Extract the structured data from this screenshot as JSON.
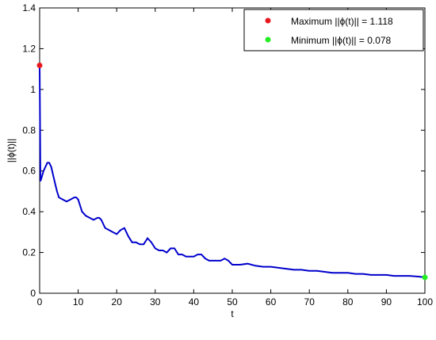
{
  "chart_data": {
    "type": "line",
    "title": "",
    "xlabel": "t",
    "ylabel": "||ϕ(t)||",
    "xlim": [
      0,
      100
    ],
    "ylim": [
      0,
      1.4
    ],
    "x_ticks": [
      "0",
      "10",
      "20",
      "30",
      "40",
      "50",
      "60",
      "70",
      "80",
      "90",
      "100"
    ],
    "y_ticks": [
      "0",
      "0.2",
      "0.4",
      "0.6",
      "0.8",
      "1",
      "1.2",
      "1.4"
    ],
    "grid": false,
    "legend_position": "top-right",
    "series": [
      {
        "color": "#0000cc",
        "x": [
          0,
          0.2,
          0.4,
          0.7,
          1.0,
          1.5,
          2.0,
          2.5,
          3.0,
          3.5,
          4.0,
          4.5,
          5.0,
          6.0,
          7.0,
          8.0,
          9.0,
          9.5,
          10.0,
          11.0,
          12.0,
          13.0,
          14.0,
          15.0,
          15.5,
          16.0,
          17.0,
          18.0,
          19.0,
          20.0,
          21.0,
          22.0,
          23.0,
          24.0,
          25.0,
          26.0,
          27.0,
          28.0,
          29.0,
          30.0,
          31.0,
          32.0,
          33.0,
          34.0,
          35.0,
          36.0,
          37.0,
          38.0,
          39.0,
          40.0,
          41.0,
          42.0,
          43.0,
          44.0,
          45.0,
          46.0,
          47.0,
          48.0,
          49.0,
          50.0,
          52.0,
          54.0,
          56.0,
          58.0,
          60.0,
          62.0,
          64.0,
          66.0,
          68.0,
          70.0,
          72.0,
          74.0,
          76.0,
          78.0,
          80.0,
          82.0,
          84.0,
          86.0,
          88.0,
          90.0,
          92.0,
          94.0,
          96.0,
          98.0,
          100.0
        ],
        "y": [
          1.118,
          0.55,
          0.56,
          0.58,
          0.6,
          0.62,
          0.64,
          0.64,
          0.62,
          0.58,
          0.54,
          0.5,
          0.47,
          0.46,
          0.45,
          0.46,
          0.47,
          0.47,
          0.46,
          0.4,
          0.38,
          0.37,
          0.36,
          0.37,
          0.37,
          0.36,
          0.32,
          0.31,
          0.3,
          0.29,
          0.31,
          0.32,
          0.28,
          0.25,
          0.25,
          0.24,
          0.24,
          0.27,
          0.25,
          0.22,
          0.21,
          0.21,
          0.2,
          0.22,
          0.22,
          0.19,
          0.19,
          0.18,
          0.18,
          0.18,
          0.19,
          0.19,
          0.17,
          0.16,
          0.16,
          0.16,
          0.16,
          0.17,
          0.16,
          0.14,
          0.14,
          0.145,
          0.135,
          0.13,
          0.13,
          0.125,
          0.12,
          0.115,
          0.115,
          0.11,
          0.11,
          0.105,
          0.1,
          0.1,
          0.1,
          0.095,
          0.095,
          0.09,
          0.09,
          0.09,
          0.085,
          0.085,
          0.085,
          0.082,
          0.078
        ]
      }
    ],
    "markers": [
      {
        "name": "Maximum ||ϕ(t)|| = 1.118",
        "x": 0,
        "y": 1.118,
        "color": "#e8191e"
      },
      {
        "name": "Minimum ||ϕ(t)|| = 0.078",
        "x": 100,
        "y": 0.078,
        "color": "#22ee22"
      }
    ]
  }
}
